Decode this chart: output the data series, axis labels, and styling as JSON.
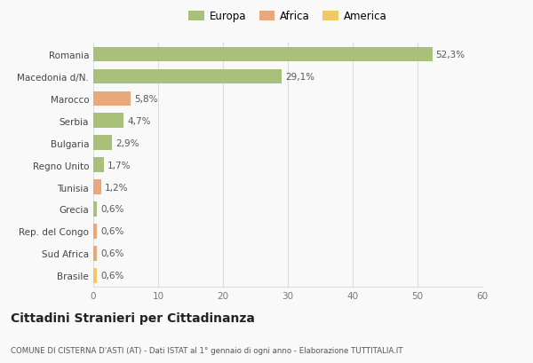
{
  "categories": [
    "Romania",
    "Macedonia d/N.",
    "Marocco",
    "Serbia",
    "Bulgaria",
    "Regno Unito",
    "Tunisia",
    "Grecia",
    "Rep. del Congo",
    "Sud Africa",
    "Brasile"
  ],
  "values": [
    52.3,
    29.1,
    5.8,
    4.7,
    2.9,
    1.7,
    1.2,
    0.6,
    0.6,
    0.6,
    0.6
  ],
  "labels": [
    "52,3%",
    "29,1%",
    "5,8%",
    "4,7%",
    "2,9%",
    "1,7%",
    "1,2%",
    "0,6%",
    "0,6%",
    "0,6%",
    "0,6%"
  ],
  "colors": [
    "#a8c07a",
    "#a8c07a",
    "#e8a87c",
    "#a8c07a",
    "#a8c07a",
    "#a8c07a",
    "#e8a87c",
    "#a8c07a",
    "#e8a87c",
    "#e8a87c",
    "#f0c864"
  ],
  "legend_labels": [
    "Europa",
    "Africa",
    "America"
  ],
  "legend_colors": [
    "#a8c07a",
    "#e8a87c",
    "#f0c864"
  ],
  "xlim": [
    0,
    60
  ],
  "xticks": [
    0,
    10,
    20,
    30,
    40,
    50,
    60
  ],
  "title": "Cittadini Stranieri per Cittadinanza",
  "subtitle": "COMUNE DI CISTERNA D'ASTI (AT) - Dati ISTAT al 1° gennaio di ogni anno - Elaborazione TUTTITALIA.IT",
  "bg_color": "#f9f9f9",
  "grid_color": "#dddddd",
  "bar_height": 0.65
}
